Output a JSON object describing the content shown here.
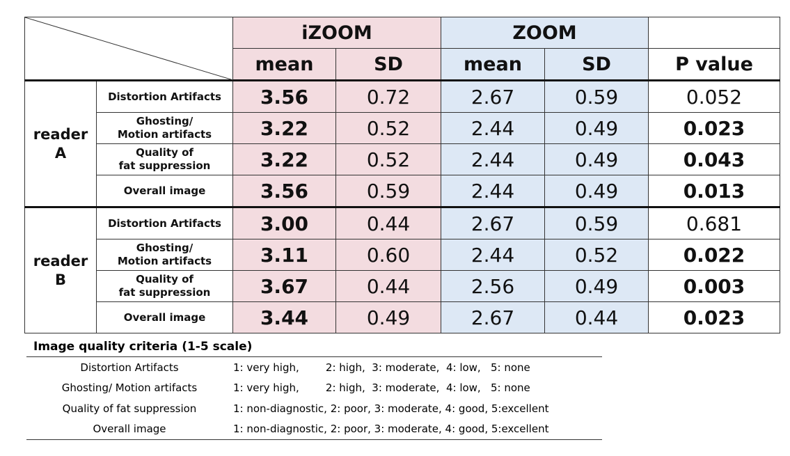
{
  "header": {
    "groups": [
      "iZOOM",
      "ZOOM"
    ],
    "mean_label": "mean",
    "sd_label": "SD",
    "p_label": "P value"
  },
  "readers": [
    {
      "label_line1": "reader",
      "label_line2": "A",
      "rows": [
        {
          "criterion": [
            "Distortion Artifacts"
          ],
          "izoom_mean": "3.56",
          "izoom_sd": "0.72",
          "zoom_mean": "2.67",
          "zoom_sd": "0.59",
          "p": "0.052",
          "significant": false
        },
        {
          "criterion": [
            "Ghosting/",
            "Motion artifacts"
          ],
          "izoom_mean": "3.22",
          "izoom_sd": "0.52",
          "zoom_mean": "2.44",
          "zoom_sd": "0.49",
          "p": "0.023",
          "significant": true
        },
        {
          "criterion": [
            "Quality of",
            "fat suppression"
          ],
          "izoom_mean": "3.22",
          "izoom_sd": "0.52",
          "zoom_mean": "2.44",
          "zoom_sd": "0.49",
          "p": "0.043",
          "significant": true
        },
        {
          "criterion": [
            "Overall image"
          ],
          "izoom_mean": "3.56",
          "izoom_sd": "0.59",
          "zoom_mean": "2.44",
          "zoom_sd": "0.49",
          "p": "0.013",
          "significant": true
        }
      ]
    },
    {
      "label_line1": "reader",
      "label_line2": "B",
      "rows": [
        {
          "criterion": [
            "Distortion Artifacts"
          ],
          "izoom_mean": "3.00",
          "izoom_sd": "0.44",
          "zoom_mean": "2.67",
          "zoom_sd": "0.59",
          "p": "0.681",
          "significant": false
        },
        {
          "criterion": [
            "Ghosting/",
            "Motion artifacts"
          ],
          "izoom_mean": "3.11",
          "izoom_sd": "0.60",
          "zoom_mean": "2.44",
          "zoom_sd": "0.52",
          "p": "0.022",
          "significant": true
        },
        {
          "criterion": [
            "Quality of",
            "fat suppression"
          ],
          "izoom_mean": "3.67",
          "izoom_sd": "0.44",
          "zoom_mean": "2.56",
          "zoom_sd": "0.49",
          "p": "0.003",
          "significant": true
        },
        {
          "criterion": [
            "Overall image"
          ],
          "izoom_mean": "3.44",
          "izoom_sd": "0.49",
          "zoom_mean": "2.67",
          "zoom_sd": "0.44",
          "p": "0.023",
          "significant": true
        }
      ]
    }
  ],
  "legend": {
    "title": "Image quality criteria (1-5 scale)",
    "rows": [
      {
        "name": "Distortion  Artifacts",
        "scale": "1: very high,        2: high,  3: moderate,  4: low,   5: none"
      },
      {
        "name": "Ghosting/  Motion artifacts",
        "scale": "1: very high,        2: high,  3: moderate,  4: low,   5: none"
      },
      {
        "name": "Quality of  fat suppression",
        "scale": "1: non-diagnostic, 2: poor, 3: moderate, 4: good, 5:excellent"
      },
      {
        "name": "Overall image",
        "scale": "1: non-diagnostic, 2: poor, 3: moderate, 4: good, 5:excellent"
      }
    ]
  },
  "colors": {
    "izoom_bg": "#f3dce0",
    "zoom_bg": "#dde8f5",
    "significant": "#ff0000"
  }
}
